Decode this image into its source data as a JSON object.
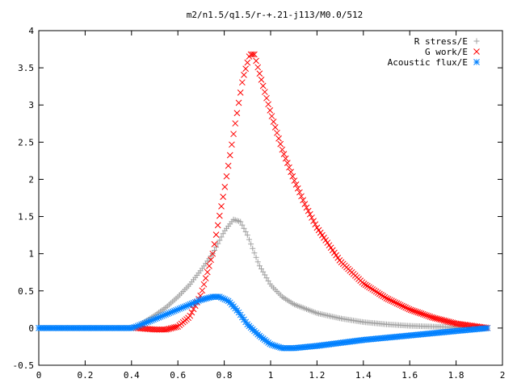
{
  "chart_data": {
    "type": "scatter",
    "title": "m2/n1.5/q1.5/r-+.21-j113/M0.0/512",
    "xlabel": "",
    "ylabel": "",
    "xlim": [
      0,
      2
    ],
    "ylim": [
      -0.5,
      4
    ],
    "x_ticks": [
      "0",
      "0.2",
      "0.4",
      "0.6",
      "0.8",
      "1",
      "1.2",
      "1.4",
      "1.6",
      "1.8",
      "2"
    ],
    "y_ticks": [
      "-0.5",
      "0",
      "0.5",
      "1",
      "1.5",
      "2",
      "2.5",
      "3",
      "3.5",
      "4"
    ],
    "legend_position": "top-right",
    "grid": false,
    "series": [
      {
        "name": "R stress/E",
        "marker": "plus",
        "color": "#a0a0a0",
        "points": [
          [
            0.0,
            0
          ],
          [
            0.1,
            0
          ],
          [
            0.2,
            0
          ],
          [
            0.3,
            0
          ],
          [
            0.4,
            0
          ],
          [
            0.42,
            0.01
          ],
          [
            0.45,
            0.07
          ],
          [
            0.5,
            0.17
          ],
          [
            0.55,
            0.28
          ],
          [
            0.6,
            0.42
          ],
          [
            0.65,
            0.58
          ],
          [
            0.7,
            0.78
          ],
          [
            0.75,
            1.0
          ],
          [
            0.8,
            1.3
          ],
          [
            0.84,
            1.46
          ],
          [
            0.87,
            1.43
          ],
          [
            0.9,
            1.25
          ],
          [
            0.95,
            0.85
          ],
          [
            1.0,
            0.58
          ],
          [
            1.05,
            0.42
          ],
          [
            1.1,
            0.32
          ],
          [
            1.2,
            0.2
          ],
          [
            1.3,
            0.13
          ],
          [
            1.4,
            0.08
          ],
          [
            1.5,
            0.05
          ],
          [
            1.6,
            0.03
          ],
          [
            1.7,
            0.02
          ],
          [
            1.8,
            0.01
          ],
          [
            1.94,
            0.0
          ]
        ]
      },
      {
        "name": "G work/E",
        "marker": "cross",
        "color": "#ff0000",
        "points": [
          [
            0.42,
            0.0
          ],
          [
            0.5,
            -0.02
          ],
          [
            0.55,
            -0.02
          ],
          [
            0.6,
            0.02
          ],
          [
            0.65,
            0.15
          ],
          [
            0.7,
            0.45
          ],
          [
            0.75,
            1.0
          ],
          [
            0.8,
            1.85
          ],
          [
            0.85,
            2.8
          ],
          [
            0.88,
            3.35
          ],
          [
            0.91,
            3.68
          ],
          [
            0.93,
            3.68
          ],
          [
            0.95,
            3.45
          ],
          [
            1.0,
            2.9
          ],
          [
            1.05,
            2.4
          ],
          [
            1.1,
            2.0
          ],
          [
            1.15,
            1.65
          ],
          [
            1.2,
            1.35
          ],
          [
            1.3,
            0.9
          ],
          [
            1.4,
            0.6
          ],
          [
            1.5,
            0.4
          ],
          [
            1.6,
            0.25
          ],
          [
            1.7,
            0.14
          ],
          [
            1.8,
            0.06
          ],
          [
            1.94,
            0.0
          ]
        ]
      },
      {
        "name": "Acoustic flux/E",
        "marker": "star",
        "color": "#0080ff",
        "points": [
          [
            0.0,
            0
          ],
          [
            0.1,
            0
          ],
          [
            0.2,
            0
          ],
          [
            0.3,
            0
          ],
          [
            0.4,
            0
          ],
          [
            0.42,
            0.02
          ],
          [
            0.5,
            0.12
          ],
          [
            0.6,
            0.25
          ],
          [
            0.7,
            0.38
          ],
          [
            0.75,
            0.42
          ],
          [
            0.78,
            0.42
          ],
          [
            0.82,
            0.36
          ],
          [
            0.86,
            0.22
          ],
          [
            0.9,
            0.05
          ],
          [
            0.95,
            -0.1
          ],
          [
            1.0,
            -0.22
          ],
          [
            1.05,
            -0.27
          ],
          [
            1.1,
            -0.27
          ],
          [
            1.2,
            -0.24
          ],
          [
            1.3,
            -0.2
          ],
          [
            1.4,
            -0.16
          ],
          [
            1.5,
            -0.13
          ],
          [
            1.6,
            -0.1
          ],
          [
            1.7,
            -0.07
          ],
          [
            1.8,
            -0.04
          ],
          [
            1.94,
            0.0
          ]
        ]
      }
    ]
  }
}
